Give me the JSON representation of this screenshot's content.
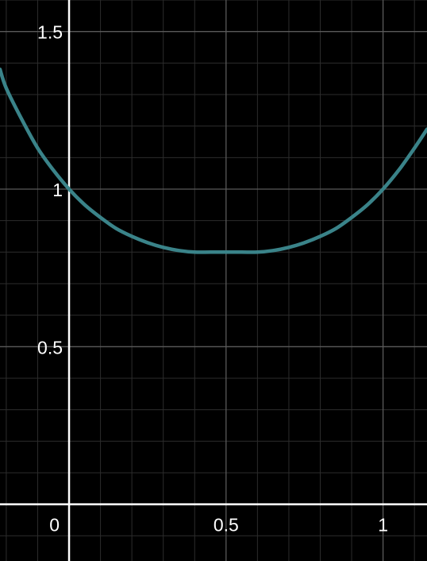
{
  "chart_data": {
    "type": "line",
    "title": "",
    "xlabel": "",
    "ylabel": "",
    "xlim": [
      -0.22,
      1.14
    ],
    "ylim": [
      -0.18,
      1.6
    ],
    "grid": true,
    "x_ticks": [
      {
        "value": 0,
        "label": "0"
      },
      {
        "value": 0.5,
        "label": "0.5"
      },
      {
        "value": 1,
        "label": "1"
      }
    ],
    "y_ticks": [
      {
        "value": 0.5,
        "label": "0.5"
      },
      {
        "value": 1,
        "label": "1"
      },
      {
        "value": 1.5,
        "label": "1.5"
      }
    ],
    "series": [
      {
        "x": [
          -0.22,
          -0.2,
          -0.15,
          -0.1,
          -0.05,
          0,
          0.05,
          0.1,
          0.15,
          0.2,
          0.25,
          0.3,
          0.35,
          0.4,
          0.45,
          0.5,
          0.55,
          0.6,
          0.65,
          0.7,
          0.75,
          0.8,
          0.85,
          0.9,
          0.95,
          1,
          1.05,
          1.1,
          1.14
        ],
        "y": [
          1.38,
          1.32,
          1.22,
          1.13,
          1.06,
          1.0,
          0.95,
          0.91,
          0.875,
          0.85,
          0.83,
          0.815,
          0.805,
          0.8,
          0.8,
          0.8,
          0.8,
          0.8,
          0.805,
          0.815,
          0.83,
          0.85,
          0.875,
          0.91,
          0.95,
          1.0,
          1.06,
          1.13,
          1.19
        ],
        "color": "#3a8389"
      }
    ],
    "colors": {
      "background": "#000000",
      "axis": "#ffffff",
      "major_grid": "#5a5a5a",
      "minor_grid": "#2c2c2c",
      "curve": "#3a8389"
    }
  }
}
